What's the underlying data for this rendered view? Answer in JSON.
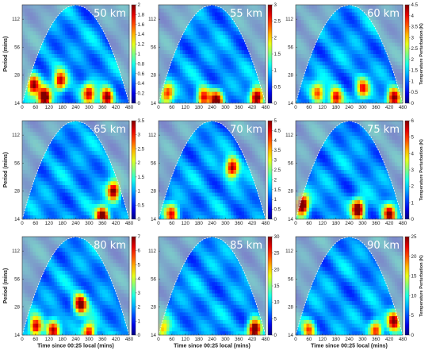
{
  "chart_data": [
    {
      "type": "heatmap",
      "title": "50 km",
      "xlabel": "",
      "ylabel": "Period (mins)",
      "x_ticks": [
        "0",
        "60",
        "120",
        "180",
        "240",
        "300",
        "360",
        "420",
        "480"
      ],
      "y_ticks": [
        "14",
        "28",
        "56",
        "112"
      ],
      "cbar_ticks": [
        "0",
        "0.2",
        "0.4",
        "0.6",
        "0.8",
        "1",
        "1.2",
        "1.4",
        "1.6",
        "1.8",
        "2"
      ],
      "cbar_label": "",
      "vmax": 2,
      "hotspots": [
        {
          "t": 50,
          "p": 22,
          "v": 1.5
        },
        {
          "t": 100,
          "p": 16,
          "v": 1.8
        },
        {
          "t": 170,
          "p": 24,
          "v": 1.4
        },
        {
          "t": 300,
          "p": 18,
          "v": 1.3
        },
        {
          "t": 380,
          "p": 16,
          "v": 1.6
        }
      ]
    },
    {
      "type": "heatmap",
      "title": "55 km",
      "xlabel": "",
      "ylabel": "",
      "x_ticks": [
        "0",
        "60",
        "120",
        "180",
        "240",
        "300",
        "360",
        "420",
        "480"
      ],
      "y_ticks": [
        "14",
        "28",
        "56",
        "112"
      ],
      "cbar_ticks": [
        "0",
        "0.5",
        "1",
        "1.5",
        "2",
        "2.5",
        "3"
      ],
      "cbar_label": "",
      "vmax": 3,
      "hotspots": [
        {
          "t": 40,
          "p": 18,
          "v": 1.8
        },
        {
          "t": 200,
          "p": 16,
          "v": 2.0
        },
        {
          "t": 260,
          "p": 15,
          "v": 2.2
        },
        {
          "t": 440,
          "p": 16,
          "v": 2.6
        }
      ]
    },
    {
      "type": "heatmap",
      "title": "60 km",
      "xlabel": "",
      "ylabel": "",
      "x_ticks": [
        "0",
        "60",
        "120",
        "180",
        "240",
        "300",
        "360",
        "420",
        "480"
      ],
      "y_ticks": [
        "14",
        "28",
        "56",
        "112"
      ],
      "cbar_ticks": [
        "0",
        "0.5",
        "1",
        "1.5",
        "2",
        "2.5",
        "3",
        "3.5",
        "4",
        "4.5"
      ],
      "cbar_label": "Temperature Perturbation (K)",
      "vmax": 4.5,
      "hotspots": [
        {
          "t": 100,
          "p": 18,
          "v": 2.4
        },
        {
          "t": 180,
          "p": 16,
          "v": 3.0
        },
        {
          "t": 300,
          "p": 20,
          "v": 2.6
        },
        {
          "t": 440,
          "p": 16,
          "v": 3.5
        }
      ]
    },
    {
      "type": "heatmap",
      "title": "65 km",
      "xlabel": "",
      "ylabel": "Period (mins)",
      "x_ticks": [
        "0",
        "60",
        "120",
        "180",
        "240",
        "300",
        "360",
        "420",
        "480"
      ],
      "y_ticks": [
        "14",
        "28",
        "56",
        "112"
      ],
      "cbar_ticks": [
        "0",
        "0.5",
        "1",
        "1.5",
        "2",
        "2.5",
        "3",
        "3.5"
      ],
      "cbar_label": "",
      "vmax": 3.5,
      "hotspots": [
        {
          "t": 360,
          "p": 15,
          "v": 3.1
        },
        {
          "t": 410,
          "p": 28,
          "v": 2.8
        }
      ]
    },
    {
      "type": "heatmap",
      "title": "70 km",
      "xlabel": "",
      "ylabel": "",
      "x_ticks": [
        "0",
        "60",
        "120",
        "180",
        "240",
        "300",
        "360",
        "420",
        "480"
      ],
      "y_ticks": [
        "14",
        "28",
        "56",
        "112"
      ],
      "cbar_ticks": [
        "0",
        "0.5",
        "1",
        "1.5",
        "2",
        "2.5",
        "3",
        "3.5",
        "4",
        "4.5",
        "5"
      ],
      "cbar_label": "",
      "vmax": 5,
      "hotspots": [
        {
          "t": 330,
          "p": 50,
          "v": 3.8
        },
        {
          "t": 60,
          "p": 16,
          "v": 3.0
        }
      ]
    },
    {
      "type": "heatmap",
      "title": "75 km",
      "xlabel": "",
      "ylabel": "",
      "x_ticks": [
        "0",
        "60",
        "120",
        "180",
        "240",
        "300",
        "360",
        "420",
        "480"
      ],
      "y_ticks": [
        "14",
        "28",
        "56",
        "112"
      ],
      "cbar_ticks": [
        "0",
        "1",
        "2",
        "3",
        "4",
        "5",
        "6"
      ],
      "cbar_label": "Temperature Perturbation (K)",
      "vmax": 6,
      "hotspots": [
        {
          "t": 30,
          "p": 20,
          "v": 5.6
        },
        {
          "t": 280,
          "p": 18,
          "v": 5.2
        },
        {
          "t": 420,
          "p": 16,
          "v": 4.4
        }
      ]
    },
    {
      "type": "heatmap",
      "title": "80 km",
      "xlabel": "Time since 00:25 local (mins)",
      "ylabel": "Period (mins)",
      "x_ticks": [
        "0",
        "60",
        "120",
        "180",
        "240",
        "300",
        "360",
        "420",
        "480"
      ],
      "y_ticks": [
        "14",
        "28",
        "56",
        "112"
      ],
      "cbar_ticks": [
        "0",
        "1",
        "2",
        "3",
        "4",
        "5",
        "6",
        "7"
      ],
      "cbar_label": "",
      "vmax": 7,
      "hotspots": [
        {
          "t": 260,
          "p": 30,
          "v": 5.6
        },
        {
          "t": 60,
          "p": 17,
          "v": 5.0
        },
        {
          "t": 140,
          "p": 16,
          "v": 4.8
        },
        {
          "t": 300,
          "p": 15,
          "v": 5.0
        }
      ]
    },
    {
      "type": "heatmap",
      "title": "85 km",
      "xlabel": "Time since 00:25 local (mins)",
      "ylabel": "",
      "x_ticks": [
        "0",
        "60",
        "120",
        "180",
        "240",
        "300",
        "360",
        "420",
        "480"
      ],
      "y_ticks": [
        "14",
        "28",
        "56",
        "112"
      ],
      "cbar_ticks": [
        "0",
        "5",
        "10",
        "15",
        "20",
        "25",
        "30"
      ],
      "cbar_label": "",
      "vmax": 30,
      "hotspots": [
        {
          "t": 430,
          "p": 16,
          "v": 27
        },
        {
          "t": 20,
          "p": 16,
          "v": 14
        }
      ]
    },
    {
      "type": "heatmap",
      "title": "90 km",
      "xlabel": "Time since 00:25 local (mins)",
      "ylabel": "",
      "x_ticks": [
        "0",
        "60",
        "120",
        "180",
        "240",
        "300",
        "360",
        "420",
        "480"
      ],
      "y_ticks": [
        "14",
        "28",
        "56",
        "112"
      ],
      "cbar_ticks": [
        "0",
        "5",
        "10",
        "15",
        "20",
        "25"
      ],
      "cbar_label": "Temperature Perturbation (K)",
      "vmax": 25,
      "hotspots": [
        {
          "t": 440,
          "p": 20,
          "v": 18
        },
        {
          "t": 360,
          "p": 16,
          "v": 16
        },
        {
          "t": 60,
          "p": 16,
          "v": 13
        }
      ]
    }
  ]
}
